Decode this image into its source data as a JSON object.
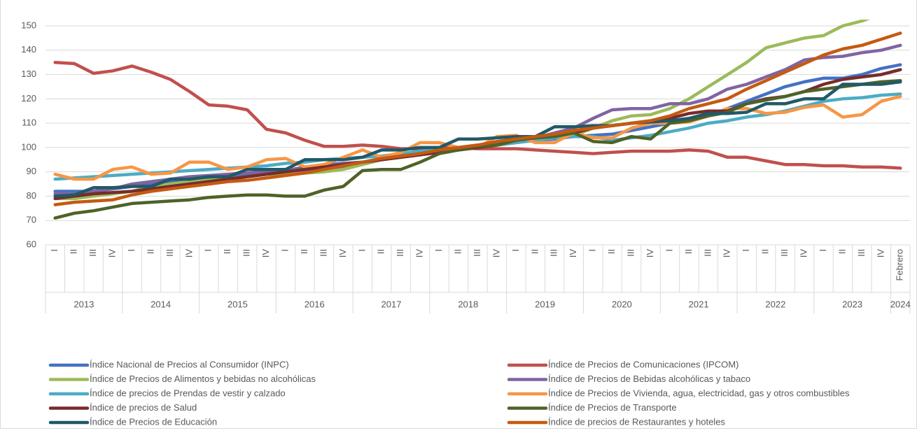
{
  "chart_data": {
    "type": "line",
    "categories": [
      "I",
      "II",
      "III",
      "IV",
      "I",
      "II",
      "III",
      "IV",
      "I",
      "II",
      "III",
      "IV",
      "I",
      "II",
      "III",
      "IV",
      "I",
      "II",
      "III",
      "IV",
      "I",
      "II",
      "III",
      "IV",
      "I",
      "II",
      "III",
      "IV",
      "I",
      "II",
      "III",
      "IV",
      "I",
      "II",
      "III",
      "IV",
      "I",
      "II",
      "III",
      "IV",
      "I",
      "II",
      "III",
      "IV",
      "Febrero"
    ],
    "category_years": [
      "2013",
      null,
      null,
      null,
      "2014",
      null,
      null,
      null,
      "2015",
      null,
      null,
      null,
      "2016",
      null,
      null,
      null,
      "2017",
      null,
      null,
      null,
      "2018",
      null,
      null,
      null,
      "2019",
      null,
      null,
      null,
      "2020",
      null,
      null,
      null,
      "2021",
      null,
      null,
      null,
      "2022",
      null,
      null,
      null,
      "2023",
      null,
      null,
      null,
      "2024"
    ],
    "ylim": [
      60,
      150
    ],
    "yticks": [
      60,
      70,
      80,
      90,
      100,
      110,
      120,
      130,
      140,
      150
    ],
    "grid": true,
    "legend": "bottom",
    "series": [
      {
        "name": "Índice Nacional de Precios al Consumidor (INPC)",
        "color": "#4472c4",
        "values": [
          82,
          82,
          82,
          83,
          84,
          85,
          86,
          86.5,
          87,
          88,
          88.5,
          89,
          89.5,
          90,
          90.5,
          91.5,
          94,
          95,
          96,
          97,
          98,
          99,
          100,
          101,
          102,
          103,
          103.5,
          104.5,
          105,
          105.5,
          107,
          108.5,
          110,
          111,
          113,
          116,
          119,
          122,
          125,
          127,
          128.5,
          128.5,
          130,
          132.5,
          134
        ]
      },
      {
        "name": "Índice de Precios de Comunicaciones (IPCOM)",
        "color": "#c0504d",
        "values": [
          135,
          134.5,
          130.5,
          131.5,
          133.5,
          131,
          128,
          123,
          117.5,
          117,
          115.5,
          107.5,
          106,
          103,
          100.5,
          100.5,
          101,
          100.5,
          99.5,
          99.5,
          100,
          100,
          99.5,
          99.5,
          99.5,
          99,
          98.5,
          98,
          97.5,
          98,
          98.5,
          98.5,
          98.5,
          99,
          98.5,
          96,
          96,
          94.5,
          93,
          93,
          92.5,
          92.5,
          92,
          92,
          91.5
        ]
      },
      {
        "name": "Índice de Precios de Alimentos y bebidas no alcohólicas",
        "color": "#9bbb59",
        "values": [
          79,
          79,
          80,
          81,
          82,
          84,
          85,
          86,
          86.5,
          87,
          88,
          89,
          89,
          89.5,
          90,
          91,
          93,
          95,
          96,
          97,
          98,
          99,
          100,
          101,
          102,
          103,
          104,
          105,
          108,
          111,
          113,
          113.5,
          116,
          120,
          125,
          130,
          135,
          141,
          143,
          145,
          146,
          150,
          152,
          155,
          157
        ]
      },
      {
        "name": "Índice de Precios de Bebidas alcohólicas y tabaco",
        "color": "#8064a2",
        "values": [
          81,
          81,
          82,
          83,
          85,
          86,
          87,
          88,
          88.5,
          89,
          89.5,
          90,
          90.5,
          92,
          93,
          93.5,
          94,
          95,
          96,
          97,
          99,
          100,
          101,
          102,
          103,
          104,
          106,
          108,
          112,
          115.5,
          116,
          116,
          118,
          118,
          120,
          124,
          126,
          129,
          132,
          136,
          137,
          137.5,
          139,
          140,
          142
        ]
      },
      {
        "name": "Índice de precios de Prendas de vestir y calzado",
        "color": "#4bacc6",
        "values": [
          87,
          87.5,
          88,
          88.5,
          89,
          89.5,
          90,
          90.5,
          91,
          91.5,
          92,
          92.5,
          93.5,
          94,
          95,
          95.5,
          96,
          96.5,
          97.5,
          98.5,
          99,
          100,
          100.5,
          101,
          102,
          103,
          104,
          104.5,
          104.5,
          103,
          104,
          105,
          106.5,
          108,
          110,
          111,
          112.5,
          113.5,
          115,
          117,
          119,
          120,
          120.5,
          121.5,
          122
        ]
      },
      {
        "name": "Índice de Precios de Vivienda, agua, electricidad, gas y otros combustibles",
        "color": "#f79646",
        "values": [
          89,
          87,
          87,
          91,
          92,
          89,
          89.5,
          94,
          94,
          91,
          92,
          95,
          95.5,
          92,
          93,
          96,
          99,
          96,
          98,
          102,
          102,
          100,
          100,
          104.5,
          105,
          102,
          102,
          106,
          104,
          104,
          108,
          110,
          110,
          110.5,
          113,
          116,
          116,
          114,
          114.5,
          116.5,
          117.5,
          112.5,
          113.5,
          119,
          121
        ]
      },
      {
        "name": "Índice de precios de Salud",
        "color": "#772c2a",
        "values": [
          79,
          80,
          81,
          81.5,
          82,
          83,
          84,
          85,
          86,
          87,
          88,
          89,
          90,
          91,
          92,
          93,
          94,
          95,
          96,
          97,
          98,
          99,
          100,
          101,
          103,
          104,
          105,
          106,
          108,
          109,
          110,
          111,
          112,
          114,
          115,
          115,
          118,
          120,
          121,
          123,
          126,
          128,
          129,
          130,
          132
        ]
      },
      {
        "name": "Índice de Precios de Transporte",
        "color": "#4f6228",
        "values": [
          71,
          73,
          74,
          75.5,
          77,
          77.5,
          78,
          78.5,
          79.5,
          80,
          80.5,
          80.5,
          80,
          80,
          82.5,
          84,
          90.5,
          91,
          91,
          94,
          97.5,
          99,
          100.5,
          101,
          103,
          104,
          104.5,
          106,
          102.5,
          102,
          104.5,
          103.5,
          110,
          111,
          113,
          114.5,
          118,
          119.5,
          121,
          123,
          124,
          125,
          126,
          127,
          127.5
        ]
      },
      {
        "name": "Índice de Precios de Educación",
        "color": "#215968",
        "values": [
          80,
          80.5,
          83.5,
          83.5,
          84,
          84,
          87,
          87,
          88,
          88,
          91,
          91,
          91,
          95,
          95,
          95,
          96,
          99,
          99,
          100,
          100,
          103.5,
          103.5,
          104,
          104.5,
          104.5,
          108.5,
          108.5,
          109,
          109,
          110,
          110.5,
          111,
          112,
          114,
          114,
          114.5,
          118,
          118,
          120,
          120,
          126,
          126,
          126,
          127
        ]
      },
      {
        "name": "Índice de precios de Restaurantes y hoteles",
        "color": "#c55a11",
        "values": [
          76.5,
          77.5,
          78,
          78.5,
          80.5,
          82,
          83,
          84,
          85,
          86,
          86.5,
          87.5,
          88.5,
          89.5,
          91,
          92.5,
          94,
          95.5,
          96.5,
          97.5,
          99,
          100,
          101,
          102.5,
          103.5,
          104.5,
          105.5,
          107,
          108,
          109,
          110,
          111,
          113,
          116,
          118,
          120,
          124,
          127.5,
          131,
          134.5,
          138,
          140.5,
          142,
          144.5,
          147
        ]
      }
    ]
  }
}
